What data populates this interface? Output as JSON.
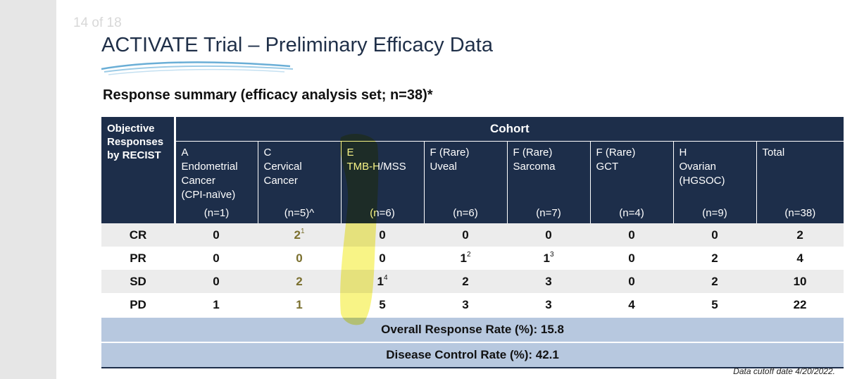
{
  "page_counter": "14 of 18",
  "title": "ACTIVATE Trial – Preliminary Efficacy Data",
  "subtitle": "Response summary (efficacy analysis set; n=38)*",
  "table": {
    "corner_header": "Objective Responses by RECIST",
    "group_header": "Cohort",
    "columns": [
      {
        "name": "A\nEndometrial\nCancer\n(CPI-naïve)",
        "n": "(n=1)"
      },
      {
        "name": "C\nCervical\nCancer",
        "n": "(n=5)^"
      },
      {
        "name": "E\nTMB-H/MSS",
        "n": "(n=6)"
      },
      {
        "name": "F (Rare)\nUveal",
        "n": "(n=6)"
      },
      {
        "name": "F (Rare)\nSarcoma",
        "n": "(n=7)"
      },
      {
        "name": "F (Rare)\nGCT",
        "n": "(n=4)"
      },
      {
        "name": "H\nOvarian\n(HGSOC)",
        "n": "(n=9)"
      },
      {
        "name": "Total",
        "n": "(n=38)"
      }
    ],
    "rows": [
      {
        "label": "CR",
        "cells": [
          {
            "v": "0"
          },
          {
            "v": "2",
            "sup": "1"
          },
          {
            "v": "0"
          },
          {
            "v": "0"
          },
          {
            "v": "0"
          },
          {
            "v": "0"
          },
          {
            "v": "0"
          },
          {
            "v": "2"
          }
        ]
      },
      {
        "label": "PR",
        "cells": [
          {
            "v": "0"
          },
          {
            "v": "0"
          },
          {
            "v": "0"
          },
          {
            "v": "1",
            "sup": "2"
          },
          {
            "v": "1",
            "sup": "3"
          },
          {
            "v": "0"
          },
          {
            "v": "2"
          },
          {
            "v": "4"
          }
        ]
      },
      {
        "label": "SD",
        "cells": [
          {
            "v": "0"
          },
          {
            "v": "2"
          },
          {
            "v": "1",
            "sup": "4"
          },
          {
            "v": "2"
          },
          {
            "v": "3"
          },
          {
            "v": "0"
          },
          {
            "v": "2"
          },
          {
            "v": "10"
          }
        ]
      },
      {
        "label": "PD",
        "cells": [
          {
            "v": "1"
          },
          {
            "v": "1"
          },
          {
            "v": "5"
          },
          {
            "v": "3"
          },
          {
            "v": "3"
          },
          {
            "v": "4"
          },
          {
            "v": "5"
          },
          {
            "v": "22"
          }
        ]
      }
    ],
    "summary_rows": [
      "Overall Response Rate (%): 15.8",
      "Disease Control Rate (%): 42.1"
    ]
  },
  "footnote": "Data cutoff date 4/20/2022.",
  "colors": {
    "header_navy": "#1d2e4a",
    "summary_blue": "#b7c8df",
    "highlighter_yellow": "#f3ee3c"
  }
}
